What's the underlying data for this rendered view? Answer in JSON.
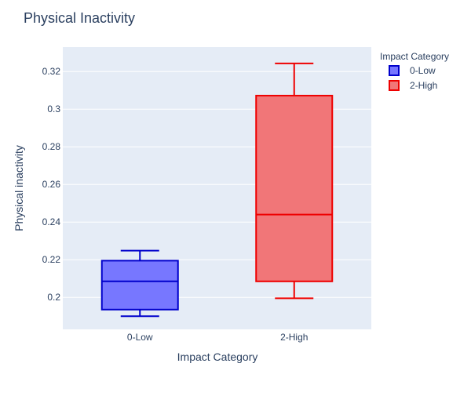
{
  "chart_data": {
    "type": "box",
    "title": "Physical Inactivity",
    "xlabel": "Impact Category",
    "ylabel": "Physical inactivity",
    "ylim": [
      0.183,
      0.333
    ],
    "yticks": [
      0.2,
      0.22,
      0.24,
      0.26,
      0.28,
      0.3,
      0.32
    ],
    "ytick_labels": [
      "0.2",
      "0.22",
      "0.24",
      "0.26",
      "0.28",
      "0.3",
      "0.32"
    ],
    "categories": [
      "0-Low",
      "2-High"
    ],
    "legend": {
      "title": "Impact Category",
      "position": "top-right"
    },
    "grid": true,
    "series": [
      {
        "name": "0-Low",
        "category": "0-Low",
        "whisker_low": 0.19,
        "q1": 0.1935,
        "median": 0.2085,
        "q3": 0.2195,
        "whisker_high": 0.2248,
        "line_color": "#0000cc",
        "fill_color": "#7777ff"
      },
      {
        "name": "2-High",
        "category": "2-High",
        "whisker_low": 0.1995,
        "q1": 0.2085,
        "median": 0.244,
        "q3": 0.3072,
        "whisker_high": 0.3243,
        "line_color": "#ee0000",
        "fill_color": "#f17678"
      }
    ],
    "colors": {
      "plot_background": "#e5ecf6",
      "gridline": "#ffffff",
      "text": "#2a3f5f"
    }
  }
}
